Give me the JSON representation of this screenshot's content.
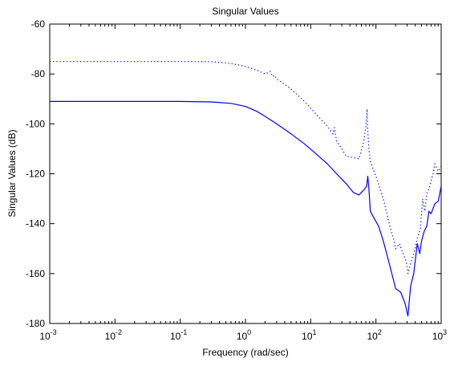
{
  "chart_data": {
    "type": "line",
    "title": "Singular Values",
    "xlabel": "Frequency (rad/sec)",
    "ylabel": "Singular Values (dB)",
    "x_scale": "log",
    "xlim": [
      0.001,
      1000
    ],
    "ylim": [
      -180,
      -60
    ],
    "grid": false,
    "legend": "none",
    "x_ticks": [
      {
        "value": 0.001,
        "base": "10",
        "exp": "-3"
      },
      {
        "value": 0.01,
        "base": "10",
        "exp": "-2"
      },
      {
        "value": 0.1,
        "base": "10",
        "exp": "-1"
      },
      {
        "value": 1,
        "base": "10",
        "exp": "0"
      },
      {
        "value": 10,
        "base": "10",
        "exp": "1"
      },
      {
        "value": 100,
        "base": "10",
        "exp": "2"
      },
      {
        "value": 1000,
        "base": "10",
        "exp": "3"
      }
    ],
    "y_ticks": [
      {
        "value": -60,
        "label": "-60"
      },
      {
        "value": -80,
        "label": "-80"
      },
      {
        "value": -100,
        "label": "-100"
      },
      {
        "value": -120,
        "label": "-120"
      },
      {
        "value": -140,
        "label": "-140"
      },
      {
        "value": -160,
        "label": "-160"
      },
      {
        "value": -180,
        "label": "-180"
      }
    ],
    "series": [
      {
        "style": "solid",
        "color": "#0000ff",
        "x": [
          0.001,
          0.01,
          0.1,
          0.3,
          0.6,
          1,
          1.5,
          2,
          3,
          5,
          8,
          12,
          18,
          25,
          35,
          45,
          55,
          65,
          72,
          75,
          78,
          82,
          90,
          110,
          130,
          160,
          200,
          240,
          280,
          310,
          340,
          380,
          430,
          470,
          500,
          550,
          600,
          650,
          700,
          750,
          800,
          900,
          1000
        ],
        "y": [
          -91,
          -91,
          -91,
          -91.2,
          -91.8,
          -93,
          -95,
          -97,
          -100,
          -104,
          -108,
          -112,
          -116,
          -120,
          -124,
          -127.5,
          -128.5,
          -126.5,
          -125,
          -121,
          -126,
          -135,
          -137,
          -141,
          -147,
          -156,
          -166,
          -167.5,
          -172,
          -177,
          -165,
          -160,
          -148,
          -152,
          -147,
          -143,
          -141,
          -135,
          -136,
          -134,
          -132,
          -131,
          -125
        ]
      },
      {
        "style": "dotted",
        "color": "#0000ff",
        "x": [
          0.001,
          0.01,
          0.1,
          0.3,
          0.6,
          1,
          1.5,
          2,
          2.4,
          2.6,
          2.8,
          3,
          5,
          8,
          12,
          18,
          22,
          23,
          25,
          30,
          35,
          45,
          55,
          65,
          70,
          73,
          75,
          78,
          82,
          90,
          100,
          130,
          160,
          190,
          200,
          230,
          260,
          290,
          310,
          340,
          380,
          430,
          480,
          520,
          560,
          600,
          650,
          700,
          750,
          800,
          900,
          1000
        ],
        "y": [
          -75,
          -75,
          -75,
          -75.1,
          -75.8,
          -77,
          -78.5,
          -80,
          -79,
          -81,
          -80.5,
          -82,
          -86,
          -91,
          -96,
          -101,
          -104,
          -101.5,
          -107,
          -110,
          -113,
          -113.5,
          -114,
          -107,
          -101,
          -94,
          -103,
          -110,
          -115,
          -118,
          -121,
          -130,
          -140,
          -147,
          -150,
          -148,
          -152,
          -155,
          -160,
          -156,
          -152,
          -146,
          -142,
          -130,
          -135,
          -128,
          -126,
          -123,
          -120,
          -116,
          -119,
          -117
        ]
      }
    ]
  }
}
